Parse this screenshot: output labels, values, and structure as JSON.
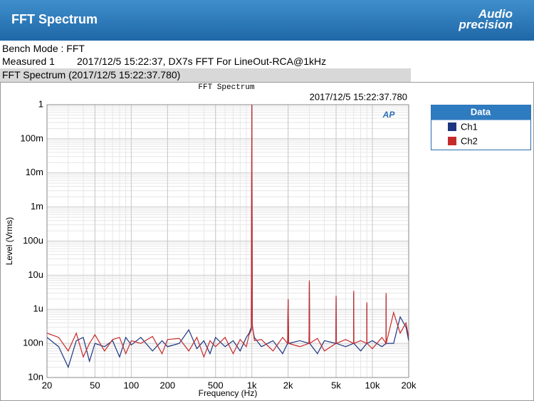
{
  "header": {
    "title": "FFT Spectrum",
    "logo_top": "Audio",
    "logo_bottom": "precision"
  },
  "info": {
    "bench_mode": "Bench Mode : FFT",
    "measured_label": "Measured 1",
    "measured_value": "2017/12/5 15:22:37, DX7s FFT For LineOut-RCA@1kHz"
  },
  "section_title": "FFT Spectrum (2017/12/5 15:22:37.780)",
  "chart_data": {
    "type": "line",
    "title": "FFT Spectrum",
    "subtitle": "2017/12/5 15:22:37.780",
    "watermark": "AP",
    "x_label": "Frequency (Hz)",
    "y_label": "Level (Vrms)",
    "log_x": true,
    "log_y": true,
    "grid": true,
    "legend": "right",
    "legend_title": "Data",
    "xlim": [
      20,
      20000
    ],
    "ylim": [
      1e-08,
      1
    ],
    "xticks": [
      20,
      50,
      100,
      200,
      500,
      {
        "value": 1000,
        "label": "1k"
      },
      {
        "value": 2000,
        "label": "2k"
      },
      {
        "value": 5000,
        "label": "5k"
      },
      {
        "value": 10000,
        "label": "10k"
      },
      {
        "value": 20000,
        "label": "20k"
      }
    ],
    "yticks": [
      {
        "value": 1e-08,
        "label": "10n"
      },
      {
        "value": 1e-07,
        "label": "100n"
      },
      {
        "value": 1e-06,
        "label": "1u"
      },
      {
        "value": 1e-05,
        "label": "10u"
      },
      {
        "value": 0.0001,
        "label": "100u"
      },
      {
        "value": 0.001,
        "label": "1m"
      },
      {
        "value": 0.01,
        "label": "10m"
      },
      {
        "value": 0.1,
        "label": "100m"
      },
      1
    ],
    "x": [
      20,
      25,
      30,
      35,
      40,
      45,
      50,
      60,
      70,
      80,
      90,
      100,
      120,
      150,
      180,
      200,
      250,
      300,
      350,
      400,
      450,
      500,
      600,
      700,
      800,
      900,
      950,
      990,
      1000,
      1010,
      1050,
      1200,
      1500,
      1800,
      1980,
      2000,
      2020,
      2500,
      2980,
      3000,
      3020,
      3500,
      4000,
      4980,
      5000,
      5020,
      6000,
      6980,
      7000,
      7020,
      8000,
      8980,
      9000,
      9020,
      10000,
      12000,
      12980,
      13000,
      13020,
      15000,
      17000,
      19000,
      20000
    ],
    "series": [
      {
        "name": "Ch1",
        "color": "#1c3580",
        "values": [
          1.5e-07,
          8e-08,
          2e-08,
          1.2e-07,
          1.5e-07,
          3e-08,
          1e-07,
          8e-08,
          1.2e-07,
          4e-08,
          1.5e-07,
          9e-08,
          1.5e-07,
          6e-08,
          1.2e-07,
          8e-08,
          1e-07,
          2.5e-07,
          7e-08,
          1.2e-07,
          5e-08,
          1.5e-07,
          8e-08,
          1.2e-07,
          6e-08,
          1.5e-07,
          2e-07,
          3e-07,
          1,
          3e-07,
          1.5e-07,
          8e-08,
          1.2e-07,
          5e-08,
          1e-07,
          1.8e-06,
          1e-07,
          1.2e-07,
          1e-07,
          6e-06,
          1e-07,
          5e-08,
          1.2e-07,
          1e-07,
          2.2e-06,
          1e-07,
          8e-08,
          1e-07,
          3e-06,
          1e-07,
          6e-08,
          1e-07,
          1.4e-06,
          1e-07,
          1.2e-07,
          8e-08,
          1e-07,
          2.5e-06,
          1e-07,
          1e-07,
          6e-07,
          3e-07,
          1.2e-07
        ]
      },
      {
        "name": "Ch2",
        "color": "#c62b2b",
        "values": [
          2e-07,
          1.5e-07,
          6e-08,
          2e-07,
          4e-08,
          1e-07,
          1.8e-07,
          6e-08,
          1.3e-07,
          1.5e-07,
          5e-08,
          1.2e-07,
          1e-07,
          1.6e-07,
          5e-08,
          1.3e-07,
          1.4e-07,
          6e-08,
          1.5e-07,
          4e-08,
          1.2e-07,
          8e-08,
          1.5e-07,
          5e-08,
          1.3e-07,
          8e-08,
          1.8e-07,
          2.5e-07,
          1,
          3.5e-07,
          1.2e-07,
          1.3e-07,
          6e-08,
          1.5e-07,
          1e-07,
          2e-06,
          1e-07,
          8e-08,
          1e-07,
          7e-06,
          1e-07,
          1.4e-07,
          6e-08,
          1e-07,
          2.5e-06,
          1e-07,
          1.3e-07,
          1e-07,
          3.5e-06,
          1e-07,
          1.2e-07,
          1e-07,
          1.6e-06,
          1e-07,
          7e-08,
          1.5e-07,
          1e-07,
          3e-06,
          1e-07,
          8e-07,
          2e-07,
          4e-07,
          1.5e-07
        ]
      }
    ]
  }
}
